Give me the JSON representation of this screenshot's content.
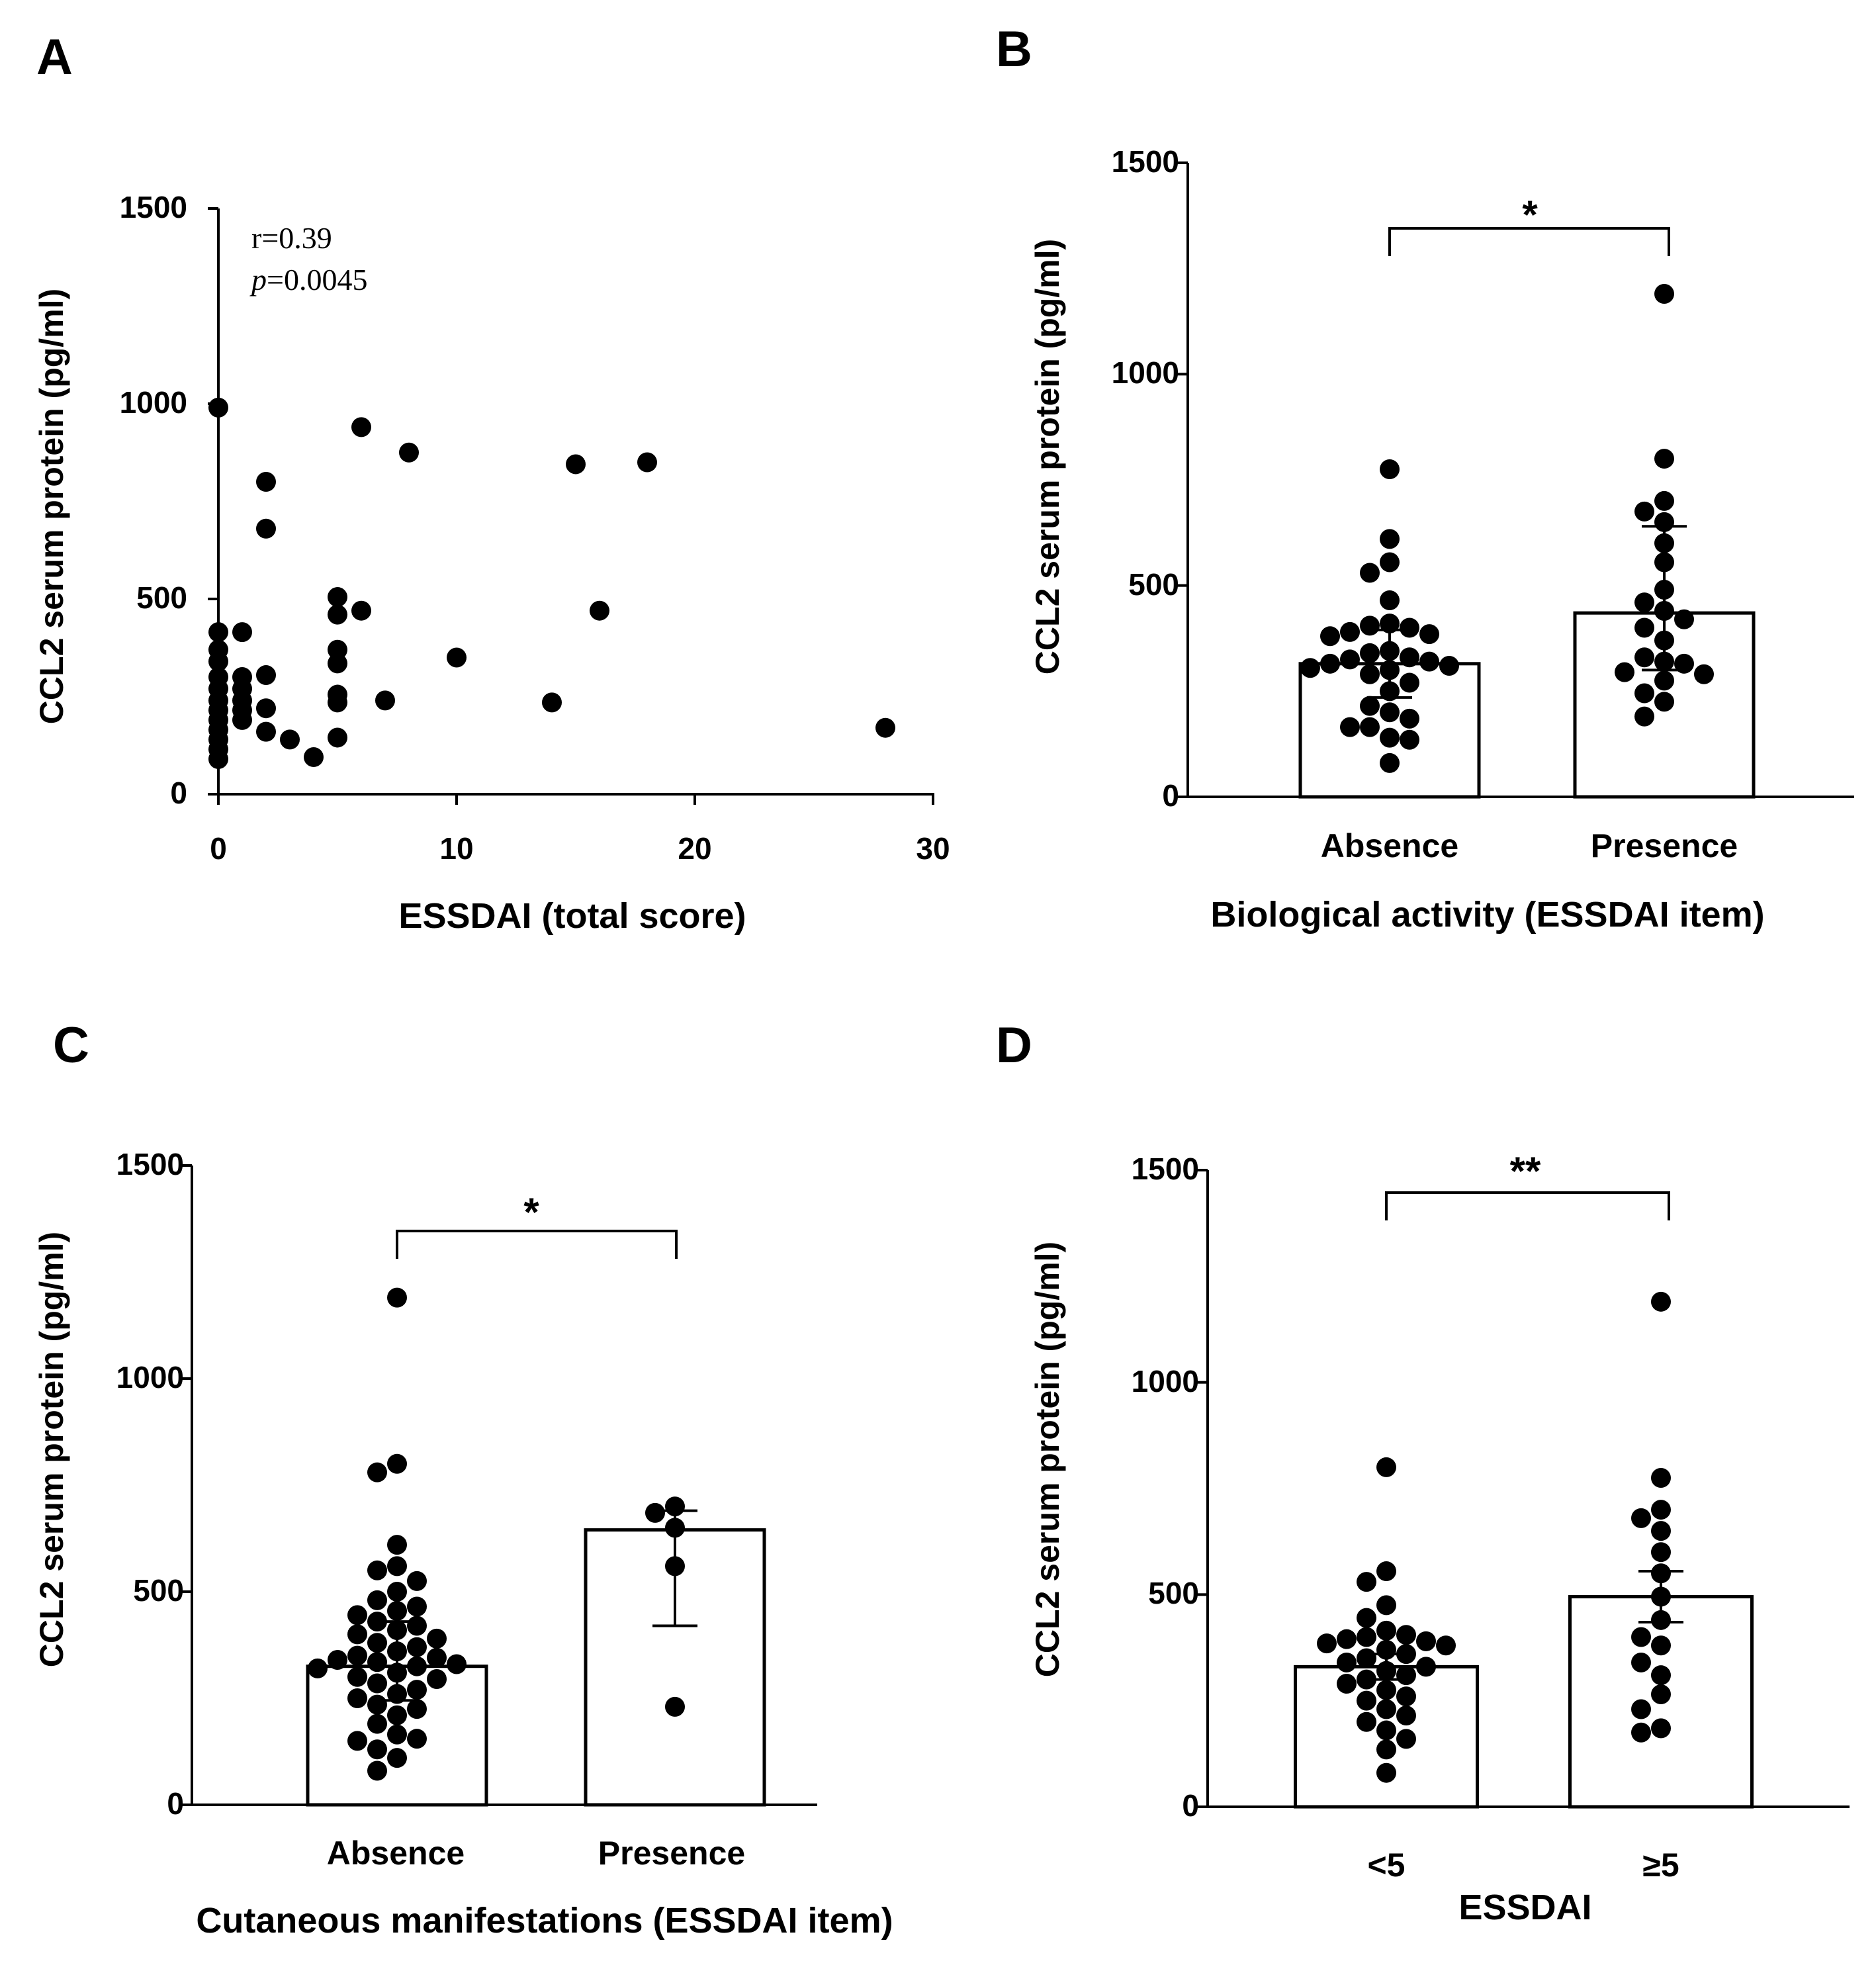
{
  "chart_data": [
    {
      "panel": "A",
      "type": "scatter",
      "xlabel": "ESSDAI (total score)",
      "ylabel": "CCL2 serum protein (pg/ml)",
      "xlim": [
        0,
        30
      ],
      "ylim": [
        0,
        1500
      ],
      "xticks": [
        "0",
        "10",
        "20",
        "30"
      ],
      "yticks": [
        "0",
        "500",
        "1000",
        "1500"
      ],
      "annotation": {
        "r": "r=0.39",
        "p_label": "p",
        "p_value": "=0.0045"
      },
      "points": [
        [
          0,
          990
        ],
        [
          0,
          415
        ],
        [
          0,
          370
        ],
        [
          0,
          340
        ],
        [
          0,
          300
        ],
        [
          0,
          270
        ],
        [
          0,
          240
        ],
        [
          0,
          215
        ],
        [
          0,
          190
        ],
        [
          0,
          165
        ],
        [
          0,
          140
        ],
        [
          0,
          115
        ],
        [
          0,
          90
        ],
        [
          1,
          415
        ],
        [
          1,
          300
        ],
        [
          1,
          270
        ],
        [
          1,
          240
        ],
        [
          1,
          215
        ],
        [
          1,
          190
        ],
        [
          2,
          800
        ],
        [
          2,
          680
        ],
        [
          2,
          305
        ],
        [
          2,
          220
        ],
        [
          2,
          160
        ],
        [
          3,
          140
        ],
        [
          4,
          95
        ],
        [
          5,
          505
        ],
        [
          5,
          460
        ],
        [
          5,
          370
        ],
        [
          5,
          335
        ],
        [
          5,
          255
        ],
        [
          5,
          235
        ],
        [
          5,
          145
        ],
        [
          6,
          940
        ],
        [
          6,
          470
        ],
        [
          7,
          240
        ],
        [
          8,
          875
        ],
        [
          10,
          350
        ],
        [
          14,
          235
        ],
        [
          15,
          845
        ],
        [
          16,
          470
        ],
        [
          18,
          850
        ],
        [
          28,
          170
        ]
      ]
    },
    {
      "panel": "B",
      "type": "bar",
      "xlabel": "Biological activity (ESSDAI item)",
      "ylabel": "CCL2 serum protein (pg/ml)",
      "ylim": [
        0,
        1500
      ],
      "yticks": [
        "0",
        "500",
        "1000",
        "1500"
      ],
      "categories": [
        "Absence",
        "Presence"
      ],
      "values": [
        315,
        435
      ],
      "error_low": [
        235,
        300
      ],
      "error_high": [
        395,
        640
      ],
      "significance": "*",
      "points": [
        [
          775,
          610,
          555,
          530,
          465,
          410,
          405,
          400,
          390,
          385,
          380,
          345,
          340,
          330,
          325,
          320,
          315,
          310,
          305,
          300,
          290,
          270,
          250,
          215,
          200,
          185,
          165,
          165,
          140,
          135,
          80
        ],
        [
          1190,
          800,
          700,
          675,
          650,
          600,
          555,
          490,
          460,
          440,
          420,
          400,
          370,
          330,
          320,
          315,
          295,
          290,
          275,
          245,
          225,
          190
        ]
      ]
    },
    {
      "panel": "C",
      "type": "bar",
      "xlabel": "Cutaneous manifestations (ESSDAI item)",
      "ylabel": "CCL2 serum protein (pg/ml)",
      "ylim": [
        0,
        1500
      ],
      "yticks": [
        "0",
        "500",
        "1000",
        "1500"
      ],
      "categories": [
        "Absence",
        "Presence"
      ],
      "values": [
        325,
        645
      ],
      "error_low": [
        245,
        420
      ],
      "error_high": [
        430,
        690
      ],
      "significance": "*",
      "points": [
        [
          1190,
          800,
          780,
          610,
          560,
          550,
          525,
          500,
          480,
          465,
          455,
          445,
          430,
          420,
          410,
          400,
          390,
          380,
          370,
          360,
          350,
          345,
          340,
          335,
          330,
          325,
          320,
          310,
          300,
          295,
          285,
          270,
          260,
          250,
          235,
          225,
          210,
          190,
          165,
          155,
          150,
          130,
          110,
          80
        ],
        [
          700,
          685,
          650,
          560,
          230
        ]
      ]
    },
    {
      "panel": "D",
      "type": "bar",
      "xlabel": "ESSDAI",
      "ylabel": "CCL2 serum protein (pg/ml)",
      "ylim": [
        0,
        1500
      ],
      "yticks": [
        "0",
        "500",
        "1000",
        "1500"
      ],
      "categories": [
        "<5",
        "≥5"
      ],
      "values": [
        330,
        495
      ],
      "error_low": [
        300,
        435
      ],
      "error_high": [
        360,
        555
      ],
      "significance": "**",
      "points": [
        [
          800,
          555,
          530,
          475,
          445,
          415,
          405,
          400,
          395,
          390,
          385,
          380,
          370,
          360,
          350,
          340,
          330,
          320,
          310,
          300,
          290,
          275,
          260,
          250,
          230,
          215,
          200,
          180,
          160,
          135,
          80
        ],
        [
          1190,
          775,
          700,
          680,
          650,
          600,
          550,
          495,
          440,
          400,
          380,
          340,
          310,
          265,
          230,
          185,
          175
        ]
      ]
    }
  ]
}
